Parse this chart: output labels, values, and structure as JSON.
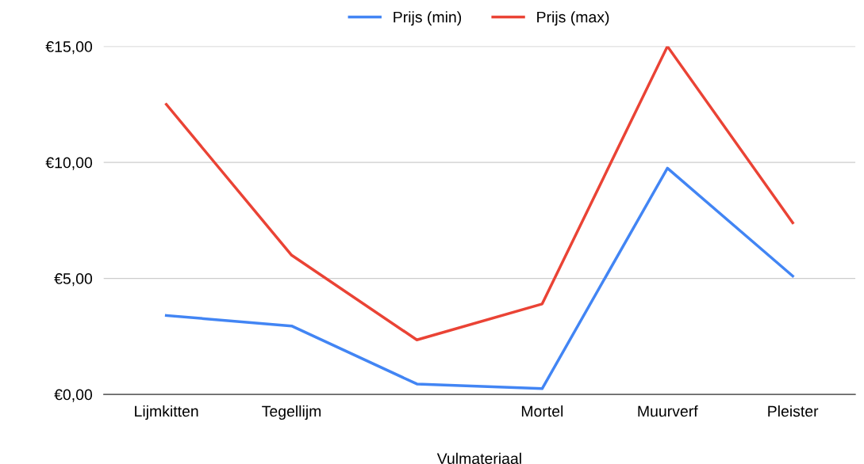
{
  "chart_data": {
    "type": "line",
    "xlabel": "Vulmateriaal",
    "categories": [
      "Lijmkitten",
      "Tegellijm",
      null,
      "Mortel",
      "Muurverf",
      "Pleister"
    ],
    "series": [
      {
        "name": "Prijs (min)",
        "color": "#4285f4",
        "values": [
          3.4,
          2.95,
          0.45,
          0.25,
          9.75,
          5.1
        ]
      },
      {
        "name": "Prijs (max)",
        "color": "#ea4335",
        "values": [
          12.5,
          6.0,
          2.35,
          3.9,
          15.0,
          7.4
        ]
      }
    ],
    "ylim": [
      0,
      15
    ],
    "yticks": [
      {
        "value": 0,
        "label": "€0,00"
      },
      {
        "value": 5,
        "label": "€5,00"
      },
      {
        "value": 10,
        "label": "€10,00"
      },
      {
        "value": 15,
        "label": "€15,00"
      }
    ],
    "grid": "y",
    "legend": "top",
    "marker": "none",
    "line_style": "solid"
  }
}
